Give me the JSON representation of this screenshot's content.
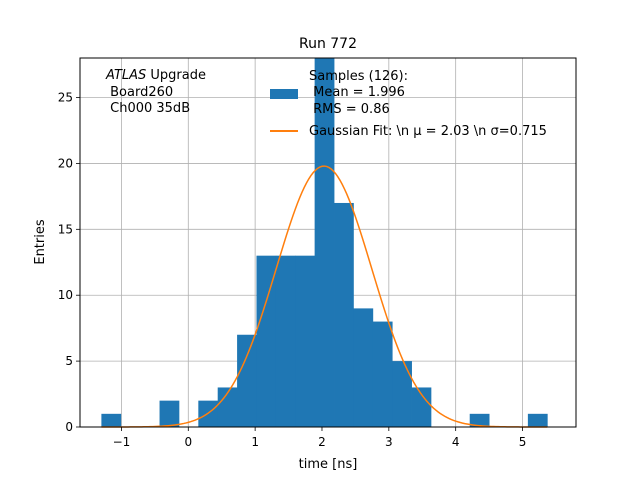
{
  "chart_data": {
    "type": "bar",
    "title": "Run 772",
    "xlabel": "time [ns]",
    "ylabel": "Entries",
    "xlim": [
      -1.62,
      5.8
    ],
    "ylim": [
      0,
      28
    ],
    "grid": true,
    "x_ticks": [
      -1,
      0,
      1,
      2,
      3,
      4,
      5
    ],
    "x_tick_labels": [
      "−1",
      "0",
      "1",
      "2",
      "3",
      "4",
      "5"
    ],
    "y_ticks": [
      0,
      5,
      10,
      15,
      20,
      25
    ],
    "y_tick_labels": [
      "0",
      "5",
      "10",
      "15",
      "20",
      "25"
    ],
    "histogram": {
      "bin_edges": [
        -1.3,
        -1.01,
        -0.72,
        -0.43,
        -0.14,
        0.15,
        0.44,
        0.73,
        1.02,
        1.31,
        1.6,
        1.89,
        2.18,
        2.47,
        2.76,
        3.05,
        3.34,
        3.63,
        3.92,
        4.21,
        4.5,
        4.79,
        5.08,
        5.37
      ],
      "counts": [
        1,
        0,
        0,
        2,
        0,
        2,
        3,
        7,
        13,
        13,
        13,
        28,
        17,
        9,
        8,
        5,
        3,
        0,
        0,
        1,
        0,
        0,
        1
      ],
      "color": "#1f77b4"
    },
    "gaussian_fit": {
      "mu": 2.03,
      "sigma": 0.715,
      "amplitude": 19.8,
      "x_range": [
        -1.3,
        5.37
      ],
      "color": "#ff7f0e"
    },
    "annotation": {
      "italic": "ATLAS",
      "line1_rest": " Upgrade",
      "line2": " Board260",
      "line3": " Ch000 35dB"
    },
    "legend": {
      "location": "top-right",
      "samples_line1": "Samples (126):",
      "samples_line2": " Mean = 1.996",
      "samples_line3": " RMS = 0.86",
      "fit_label": "Gaussian Fit: \\n μ = 2.03 \\n σ=0.715"
    }
  }
}
